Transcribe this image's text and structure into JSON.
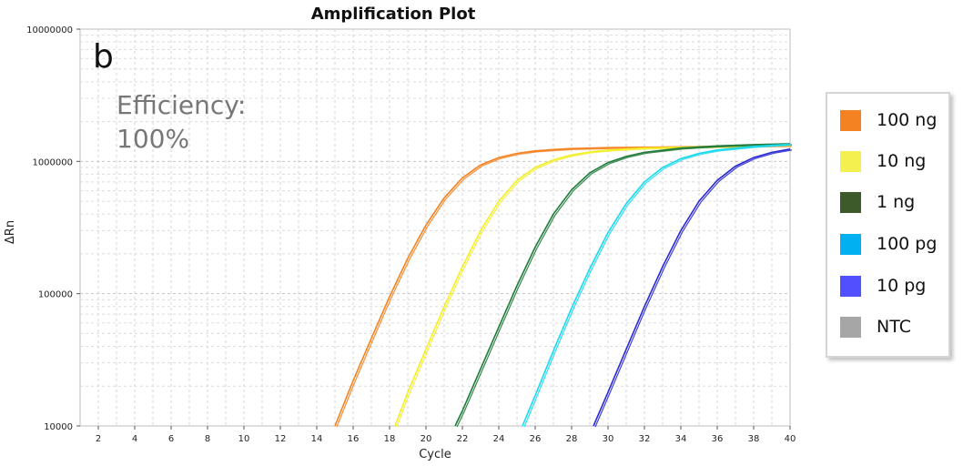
{
  "chart_data": {
    "type": "line",
    "title": "Amplification Plot",
    "xlabel": "Cycle",
    "ylabel": "ΔRn",
    "panel_label": "b",
    "annotation": [
      "Efficiency:",
      "100%"
    ],
    "xlim": [
      1,
      40
    ],
    "ylim": [
      10000,
      10000000
    ],
    "yscale": "log",
    "grid": true,
    "xticks": [
      2,
      4,
      6,
      8,
      10,
      12,
      14,
      16,
      18,
      20,
      22,
      24,
      26,
      28,
      30,
      32,
      34,
      36,
      38,
      40
    ],
    "yticks": [
      10000,
      100000,
      1000000,
      10000000
    ],
    "ytick_labels": [
      "10000",
      "100000",
      "1000000",
      "10000000"
    ],
    "legend_position": "right",
    "series": [
      {
        "name": "100 ng",
        "color": "#f58220",
        "x": [
          15,
          16,
          17,
          18,
          19,
          20,
          21,
          22,
          23,
          24,
          25,
          26,
          27,
          28,
          30,
          32,
          34,
          36,
          38,
          40
        ],
        "y": [
          10000,
          22000,
          46000,
          95000,
          185000,
          330000,
          530000,
          750000,
          940000,
          1070000,
          1150000,
          1200000,
          1230000,
          1250000,
          1270000,
          1280000,
          1290000,
          1300000,
          1310000,
          1320000
        ]
      },
      {
        "name": "10 ng",
        "color": "#f2ef2a",
        "x": [
          18.3,
          19,
          20,
          21,
          22,
          23,
          24,
          25,
          26,
          27,
          28,
          29,
          30,
          32,
          34,
          36,
          38,
          40
        ],
        "y": [
          10000,
          18000,
          38000,
          80000,
          160000,
          300000,
          500000,
          720000,
          900000,
          1030000,
          1120000,
          1180000,
          1220000,
          1260000,
          1280000,
          1300000,
          1320000,
          1340000
        ]
      },
      {
        "name": "1 ng",
        "color": "#1f7a3a",
        "x": [
          21.6,
          22,
          23,
          24,
          25,
          26,
          27,
          28,
          29,
          30,
          31,
          32,
          34,
          36,
          38,
          40
        ],
        "y": [
          10000,
          13000,
          27000,
          56000,
          115000,
          225000,
          400000,
          610000,
          820000,
          980000,
          1090000,
          1170000,
          1260000,
          1310000,
          1340000,
          1360000
        ]
      },
      {
        "name": "100 pg",
        "color": "#18d8ee",
        "x": [
          25.3,
          26,
          27,
          28,
          29,
          30,
          31,
          32,
          33,
          34,
          35,
          36,
          38,
          40
        ],
        "y": [
          10000,
          17000,
          37000,
          78000,
          155000,
          290000,
          480000,
          700000,
          900000,
          1050000,
          1150000,
          1220000,
          1300000,
          1350000
        ]
      },
      {
        "name": "10 pg",
        "color": "#2b2bd4",
        "x": [
          29.2,
          30,
          31,
          32,
          33,
          34,
          35,
          36,
          37,
          38,
          39,
          40
        ],
        "y": [
          10000,
          18000,
          38000,
          80000,
          160000,
          300000,
          500000,
          720000,
          920000,
          1070000,
          1170000,
          1240000
        ]
      },
      {
        "name": "NTC",
        "color": "#a6a6a6",
        "x": [],
        "y": []
      }
    ]
  },
  "legend": {
    "items": [
      {
        "label": "100 ng",
        "color": "#f58220"
      },
      {
        "label": "10 ng",
        "color": "#f3f050"
      },
      {
        "label": "1 ng",
        "color": "#3c5a2a"
      },
      {
        "label": "100 pg",
        "color": "#00b0f0"
      },
      {
        "label": "10 pg",
        "color": "#5050ff"
      },
      {
        "label": "NTC",
        "color": "#a6a6a6"
      }
    ]
  }
}
